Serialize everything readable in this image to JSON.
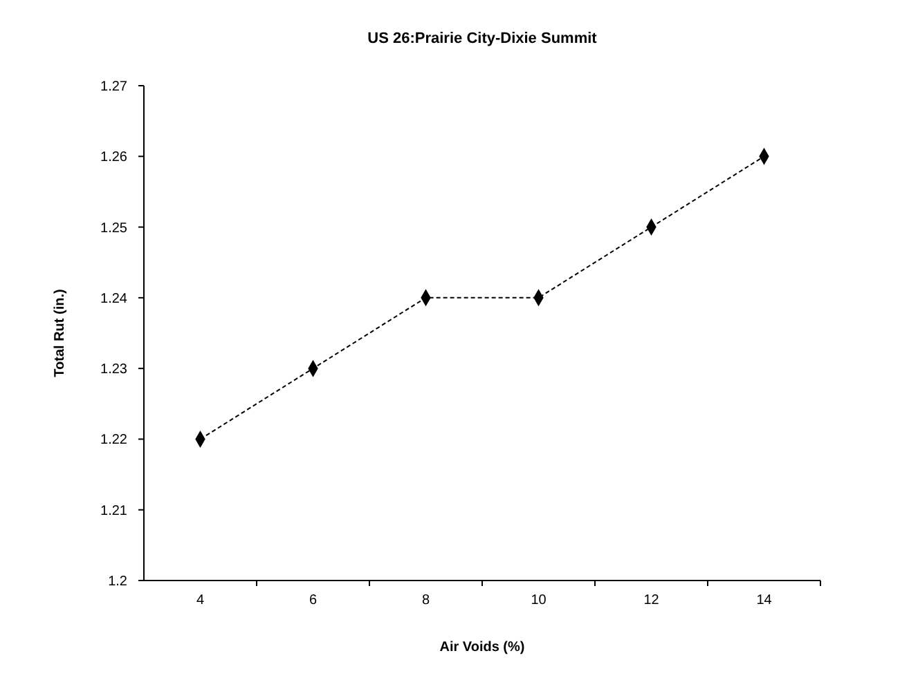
{
  "chart_data": {
    "type": "line",
    "title": "US 26:Prairie City-Dixie Summit",
    "xlabel": "Air Voids (%)",
    "ylabel": "Total Rut (in.)",
    "categories": [
      "4",
      "6",
      "8",
      "10",
      "12",
      "14"
    ],
    "series": [
      {
        "color": "#000000",
        "values": [
          1.22,
          1.23,
          1.24,
          1.24,
          1.25,
          1.26
        ]
      }
    ],
    "ylim": [
      1.2,
      1.27
    ],
    "yticks": [
      1.2,
      1.21,
      1.22,
      1.23,
      1.24,
      1.25,
      1.26,
      1.27
    ],
    "grid": false,
    "marker": "diamond",
    "line_style": "dashed"
  }
}
